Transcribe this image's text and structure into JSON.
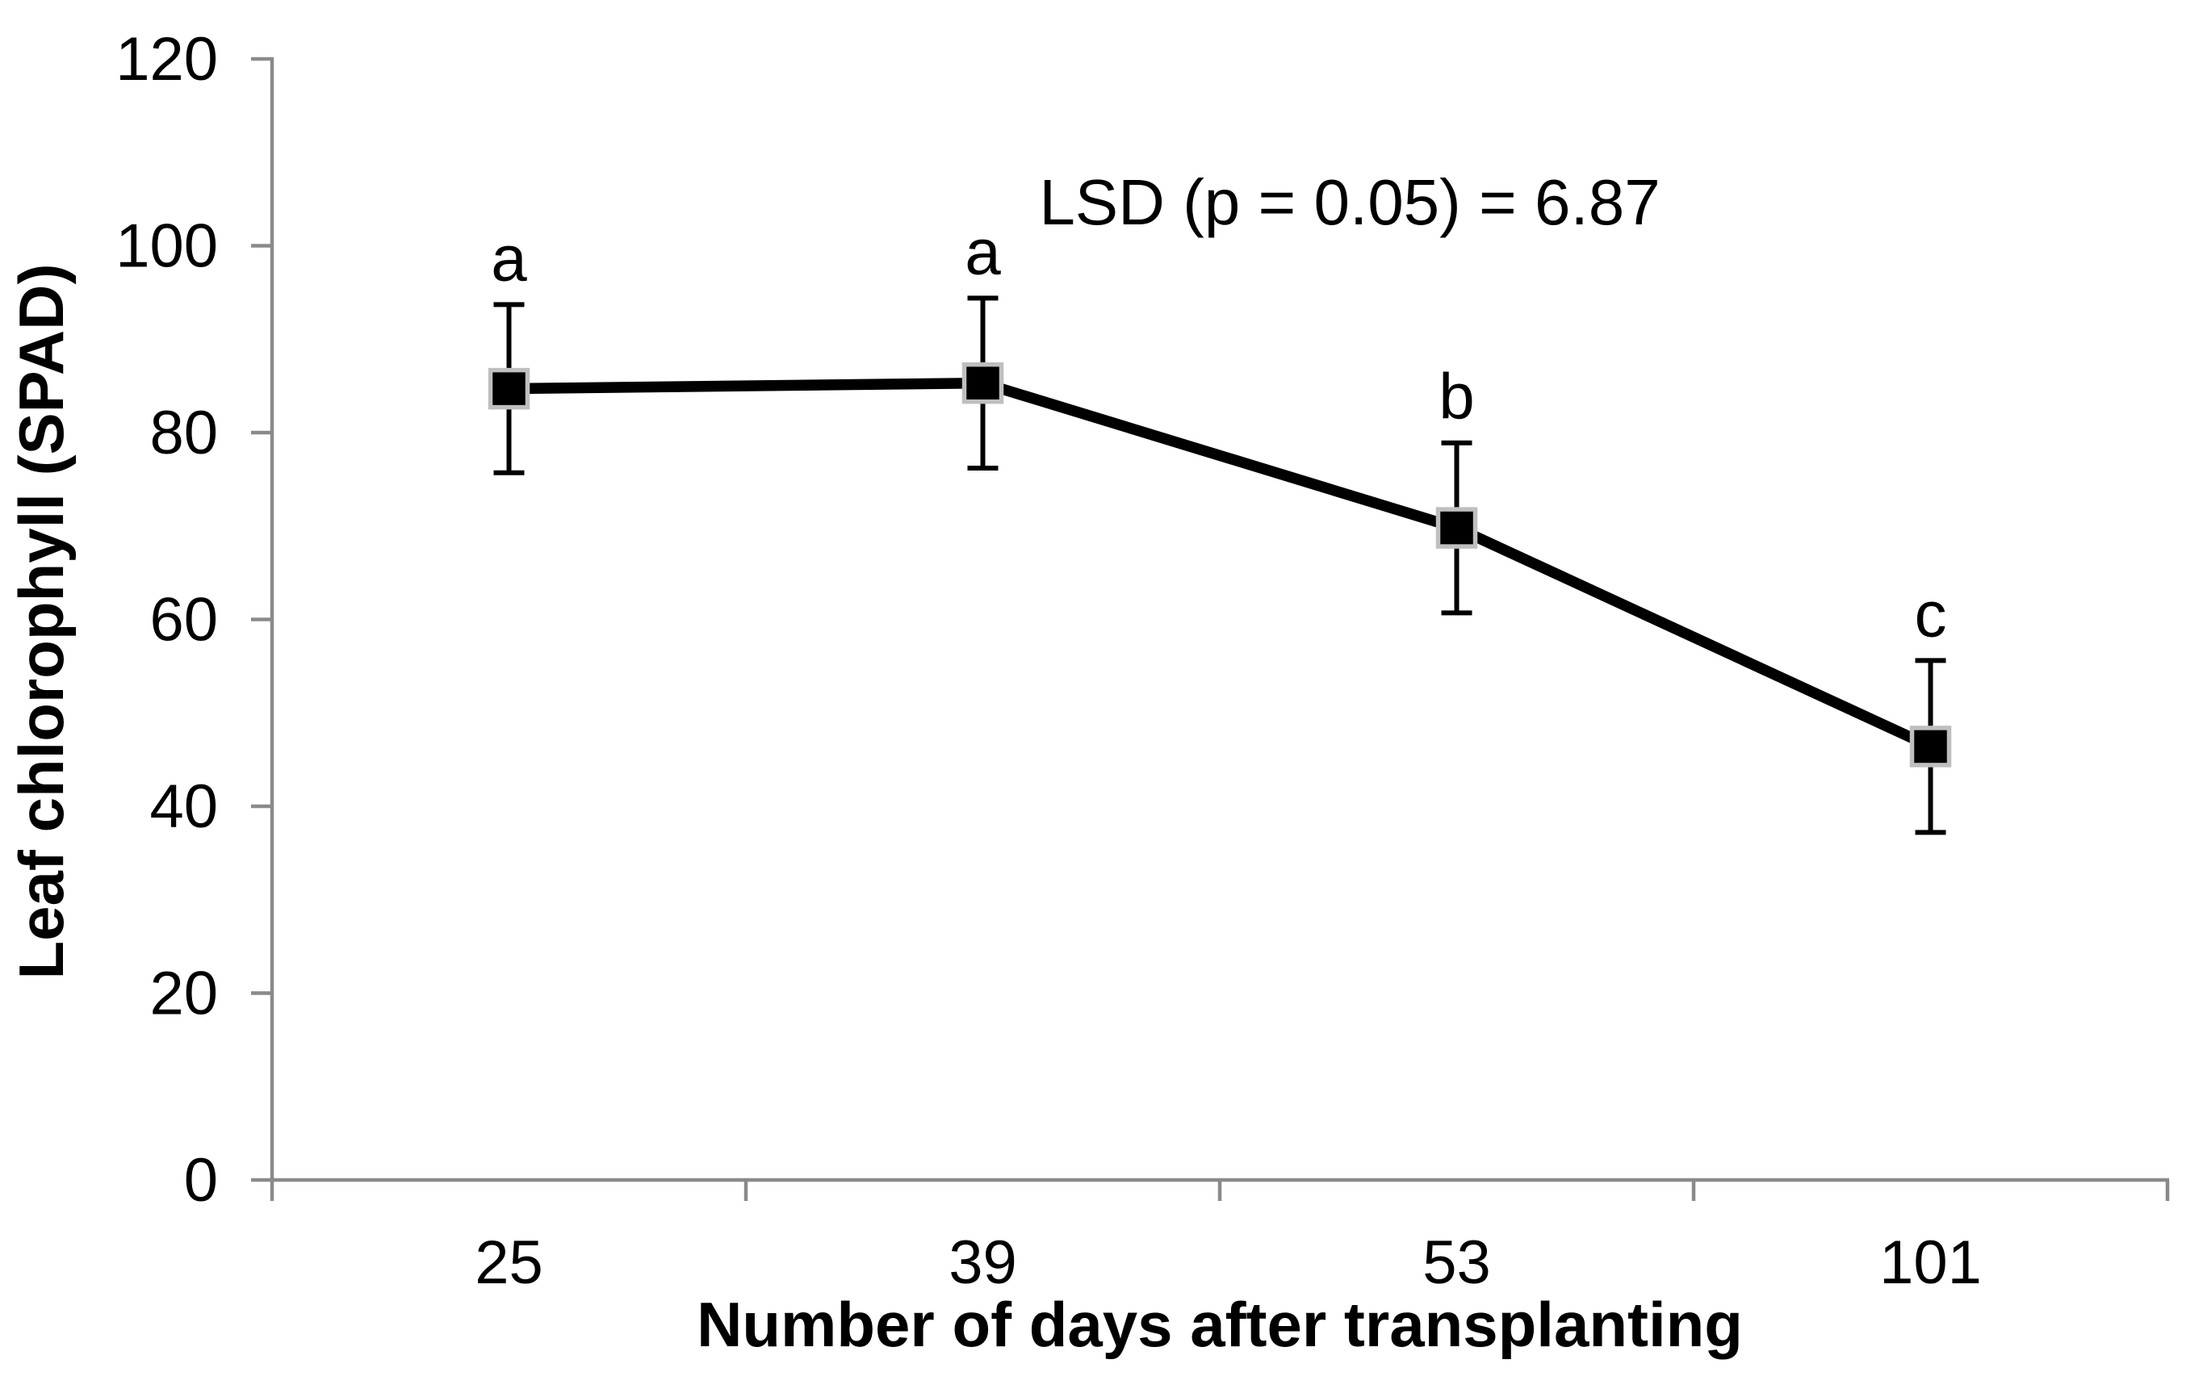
{
  "chart_data": {
    "type": "line",
    "title": "",
    "annotation": "LSD (p = 0.05) = 6.87",
    "xlabel": "Number of days after transplanting",
    "ylabel": "Leaf chlorophyll (SPAD)",
    "categories": [
      "25",
      "39",
      "53",
      "101"
    ],
    "series": [
      {
        "name": "Leaf chlorophyll (SPAD)",
        "values": [
          84.7,
          85.3,
          69.8,
          46.4
        ],
        "error_bars": [
          9.0,
          9.1,
          9.1,
          9.2
        ],
        "point_labels": [
          "a",
          "a",
          "b",
          "c"
        ]
      }
    ],
    "ylim": [
      0,
      120
    ],
    "yticks": [
      0,
      20,
      40,
      60,
      80,
      100,
      120
    ],
    "grid": false,
    "legend": "none",
    "marker": "square",
    "colors": {
      "axis": "#8a8a8a",
      "line": "#000000",
      "marker_fill": "#000000",
      "marker_border": "#bfbfbf",
      "text": "#000000",
      "background": "#ffffff"
    }
  }
}
